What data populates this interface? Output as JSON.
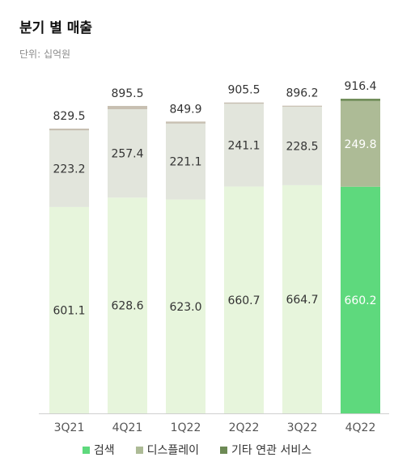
{
  "header": {
    "title": "분기 별 매출",
    "unit": "단위: 십억원"
  },
  "colors": {
    "search_highlight": "#5ed97d",
    "search": "#e7f5dc",
    "display_highlight": "#adbb96",
    "display": "#e2e5dc",
    "other": "#c7bfb1",
    "other_highlight": "#6d8a55",
    "axis": "#cfcfcf",
    "label": "#333333",
    "label_on_dark": "#ffffff"
  },
  "chart_data": {
    "type": "bar",
    "stacked": true,
    "categories": [
      "3Q21",
      "4Q21",
      "1Q22",
      "2Q22",
      "3Q22",
      "4Q22"
    ],
    "series": [
      {
        "name": "검색",
        "values": [
          601.1,
          628.6,
          623.0,
          660.7,
          664.7,
          660.2
        ]
      },
      {
        "name": "디스플레이",
        "values": [
          223.2,
          257.4,
          221.1,
          241.1,
          228.5,
          249.8
        ]
      },
      {
        "name": "기타 연관 서비스",
        "values": [
          5.2,
          9.5,
          5.8,
          3.7,
          3.0,
          6.4
        ]
      }
    ],
    "totals": [
      829.5,
      895.5,
      849.9,
      905.5,
      896.2,
      916.4
    ],
    "value_labels": {
      "search": [
        "601.1",
        "628.6",
        "623.0",
        "660.7",
        "664.7",
        "660.2"
      ],
      "display": [
        "223.2",
        "257.4",
        "221.1",
        "241.1",
        "228.5",
        "249.8"
      ],
      "totals": [
        "829.5",
        "895.5",
        "849.9",
        "905.5",
        "896.2",
        "916.4"
      ]
    },
    "highlight_index": 5,
    "ylim": [
      0,
      1000
    ],
    "grid": false,
    "legend_position": "bottom"
  }
}
